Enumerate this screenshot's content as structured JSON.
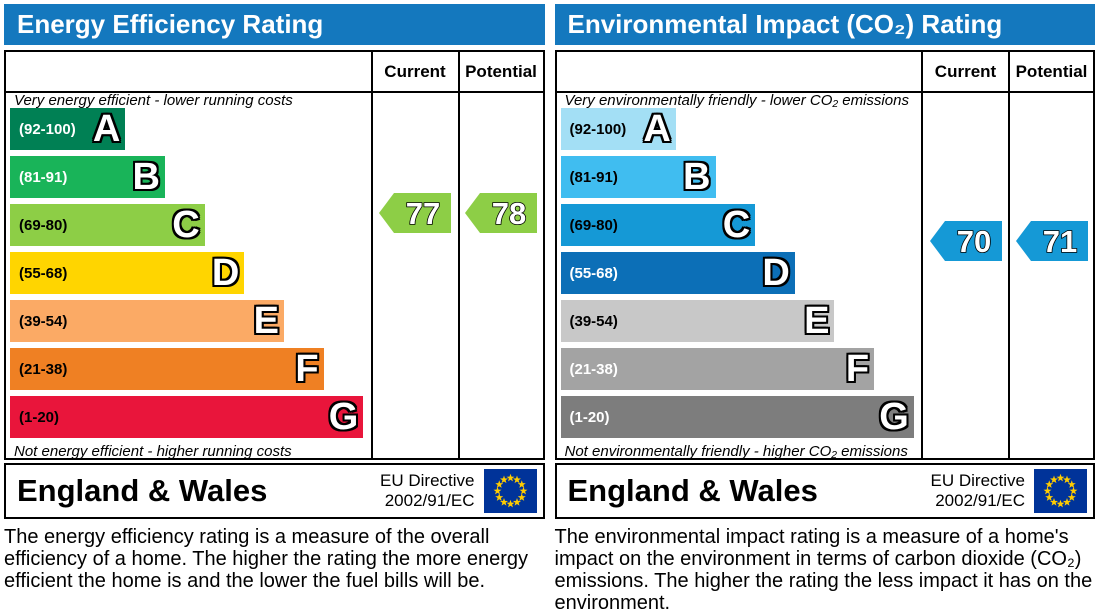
{
  "colors": {
    "header_bg": "#1478be",
    "border": "#000000",
    "eu_flag_bg": "#003399",
    "eu_flag_star": "#ffcc00"
  },
  "chart_data": [
    {
      "type": "bar",
      "title": "Energy Efficiency Rating",
      "categories": [
        "A (92-100)",
        "B (81-91)",
        "C (69-80)",
        "D (55-68)",
        "E (39-54)",
        "F (21-38)",
        "G (1-20)"
      ],
      "band_colors": [
        "#008054",
        "#19b459",
        "#8dce46",
        "#ffd500",
        "#fbaa65",
        "#ef8023",
        "#e9153b"
      ],
      "band_length_pct": [
        32,
        43,
        54,
        65,
        76,
        87,
        98
      ],
      "current": 77,
      "potential": 78,
      "current_band": "C",
      "potential_band": "C",
      "scale": [
        1,
        100
      ]
    },
    {
      "type": "bar",
      "title": "Environmental Impact (CO₂) Rating",
      "categories": [
        "A (92-100)",
        "B (81-91)",
        "C (69-80)",
        "D (55-68)",
        "E (39-54)",
        "F (21-38)",
        "G (1-20)"
      ],
      "band_colors": [
        "#a3dff5",
        "#40bdf0",
        "#1599d6",
        "#0c6fb7",
        "#c8c8c8",
        "#a3a3a3",
        "#7d7d7d"
      ],
      "band_length_pct": [
        32,
        43,
        54,
        65,
        76,
        87,
        98
      ],
      "current": 70,
      "potential": 71,
      "current_band": "C",
      "potential_band": "C",
      "scale": [
        1,
        100
      ]
    }
  ],
  "panels": [
    {
      "id": "energy",
      "title": "Energy Efficiency Rating",
      "col_current": "Current",
      "col_potential": "Potential",
      "top_note": "Very energy efficient - lower running costs",
      "bottom_note": "Not energy efficient - higher running costs",
      "bands": [
        {
          "range": "(92-100)",
          "letter": "A",
          "color": "#008054",
          "label_color": "#ffffff",
          "width_pct": 32
        },
        {
          "range": "(81-91)",
          "letter": "B",
          "color": "#19b459",
          "label_color": "#ffffff",
          "width_pct": 43
        },
        {
          "range": "(69-80)",
          "letter": "C",
          "color": "#8dce46",
          "label_color": "#000000",
          "width_pct": 54
        },
        {
          "range": "(55-68)",
          "letter": "D",
          "color": "#ffd500",
          "label_color": "#000000",
          "width_pct": 65
        },
        {
          "range": "(39-54)",
          "letter": "E",
          "color": "#fbaa65",
          "label_color": "#000000",
          "width_pct": 76
        },
        {
          "range": "(21-38)",
          "letter": "F",
          "color": "#ef8023",
          "label_color": "#000000",
          "width_pct": 87
        },
        {
          "range": "(1-20)",
          "letter": "G",
          "color": "#e9153b",
          "label_color": "#000000",
          "width_pct": 98
        }
      ],
      "current": {
        "label": "77",
        "color": "#8dce46"
      },
      "potential": {
        "label": "78",
        "color": "#8dce46"
      },
      "footer": {
        "region": "England & Wales",
        "directive_line1": "EU Directive",
        "directive_line2": "2002/91/EC"
      },
      "description": "The energy efficiency rating is a measure of the overall efficiency of a home. The higher the rating the more energy efficient the home is and the lower the fuel bills will be."
    },
    {
      "id": "co2",
      "title": "Environmental Impact (CO₂) Rating",
      "col_current": "Current",
      "col_potential": "Potential",
      "top_note": "Very environmentally friendly - lower CO₂ emissions",
      "bottom_note": "Not environmentally friendly - higher CO₂ emissions",
      "bands": [
        {
          "range": "(92-100)",
          "letter": "A",
          "color": "#a3dff5",
          "label_color": "#000000",
          "width_pct": 32
        },
        {
          "range": "(81-91)",
          "letter": "B",
          "color": "#40bdf0",
          "label_color": "#000000",
          "width_pct": 43
        },
        {
          "range": "(69-80)",
          "letter": "C",
          "color": "#1599d6",
          "label_color": "#000000",
          "width_pct": 54
        },
        {
          "range": "(55-68)",
          "letter": "D",
          "color": "#0c6fb7",
          "label_color": "#ffffff",
          "width_pct": 65
        },
        {
          "range": "(39-54)",
          "letter": "E",
          "color": "#c8c8c8",
          "label_color": "#000000",
          "width_pct": 76
        },
        {
          "range": "(21-38)",
          "letter": "F",
          "color": "#a3a3a3",
          "label_color": "#ffffff",
          "width_pct": 87
        },
        {
          "range": "(1-20)",
          "letter": "G",
          "color": "#7d7d7d",
          "label_color": "#ffffff",
          "width_pct": 98
        }
      ],
      "current": {
        "label": "70",
        "color": "#1599d6"
      },
      "potential": {
        "label": "71",
        "color": "#1599d6"
      },
      "footer": {
        "region": "England & Wales",
        "directive_line1": "EU Directive",
        "directive_line2": "2002/91/EC"
      },
      "description": "The environmental impact rating is a measure of a home's impact on the environment in terms of carbon dioxide (CO₂) emissions. The higher the rating the less impact it has on the environment."
    }
  ]
}
